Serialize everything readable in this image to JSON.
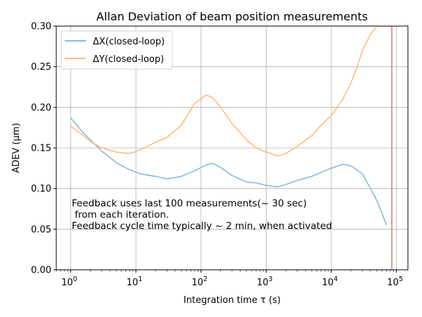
{
  "chart_data": {
    "type": "line",
    "title": "Allan Deviation of beam position measurements",
    "xlabel": "Integration time τ (s)",
    "ylabel": "ADEV (μm)",
    "xscale": "log",
    "xlim": [
      0.6,
      150000
    ],
    "ylim": [
      0.0,
      0.3
    ],
    "grid": true,
    "legend_position": "top-left",
    "x_ticks": [
      {
        "value": 1,
        "base": "10",
        "exp": "0"
      },
      {
        "value": 10,
        "base": "10",
        "exp": "1"
      },
      {
        "value": 100,
        "base": "10",
        "exp": "2"
      },
      {
        "value": 1000,
        "base": "10",
        "exp": "3"
      },
      {
        "value": 10000,
        "base": "10",
        "exp": "4"
      },
      {
        "value": 100000,
        "base": "10",
        "exp": "5"
      }
    ],
    "y_ticks": [
      {
        "value": 0.0,
        "label": "0.00"
      },
      {
        "value": 0.05,
        "label": "0.05"
      },
      {
        "value": 0.1,
        "label": "0.10"
      },
      {
        "value": 0.15,
        "label": "0.15"
      },
      {
        "value": 0.2,
        "label": "0.20"
      },
      {
        "value": 0.25,
        "label": "0.25"
      },
      {
        "value": 0.3,
        "label": "0.30"
      }
    ],
    "series": [
      {
        "name": "ΔX(closed-loop)",
        "color": "#8cb8d9",
        "x": [
          1,
          1.5,
          2,
          3,
          5,
          8,
          12,
          20,
          30,
          50,
          80,
          120,
          150,
          200,
          300,
          500,
          700,
          1000,
          1500,
          2000,
          3000,
          5000,
          7000,
          10000,
          15000,
          20000,
          30000,
          40000,
          50000,
          60000,
          70000
        ],
        "y": [
          0.187,
          0.17,
          0.16,
          0.146,
          0.132,
          0.123,
          0.118,
          0.115,
          0.112,
          0.115,
          0.122,
          0.129,
          0.131,
          0.126,
          0.116,
          0.108,
          0.107,
          0.104,
          0.102,
          0.105,
          0.11,
          0.115,
          0.12,
          0.125,
          0.13,
          0.128,
          0.118,
          0.1,
          0.085,
          0.07,
          0.055
        ]
      },
      {
        "name": "ΔY(closed-loop)",
        "color": "#ffbb80",
        "x": [
          1,
          1.5,
          2,
          3,
          5,
          8,
          12,
          20,
          30,
          50,
          80,
          120,
          150,
          200,
          300,
          500,
          700,
          1000,
          1500,
          2000,
          3000,
          5000,
          7000,
          10000,
          15000,
          20000,
          25000,
          30000,
          40000,
          50000,
          60000,
          70000
        ],
        "y": [
          0.177,
          0.166,
          0.158,
          0.15,
          0.145,
          0.143,
          0.148,
          0.157,
          0.163,
          0.178,
          0.205,
          0.215,
          0.212,
          0.2,
          0.18,
          0.16,
          0.15,
          0.145,
          0.14,
          0.143,
          0.152,
          0.165,
          0.178,
          0.19,
          0.21,
          0.23,
          0.25,
          0.27,
          0.29,
          0.3,
          0.3,
          0.3
        ]
      }
    ],
    "vline": {
      "x": 85000,
      "color": "#e87b76"
    },
    "annotation": [
      "Feedback uses last 100 measurements(~ 30 sec)",
      " from each iteration.",
      "Feedback cycle time typically ~ 2 min, when activated"
    ]
  }
}
